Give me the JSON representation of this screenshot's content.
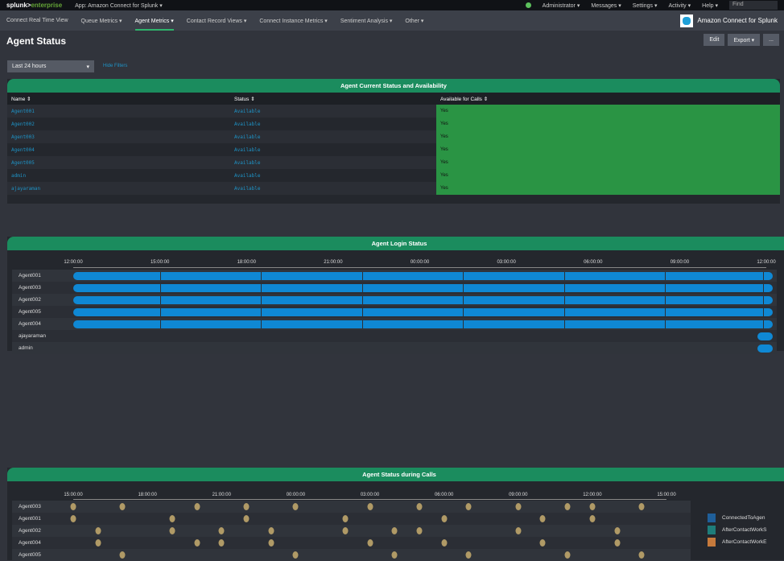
{
  "topbar": {
    "logo_a": "splunk>",
    "logo_b": "enterprise",
    "app": "App: Amazon Connect for Splunk ▾",
    "menus": [
      "Administrator ▾",
      "Messages ▾",
      "Settings ▾",
      "Activity ▾",
      "Help ▾"
    ],
    "find": "Find"
  },
  "nav": {
    "items": [
      "Connect Real Time View",
      "Queue Metrics ▾",
      "Agent Metrics ▾",
      "Contact Record Views ▾",
      "Connect Instance Metrics ▾",
      "Sentiment Analysis ▾",
      "Other ▾"
    ],
    "active": 2,
    "brand": "Amazon Connect for Splunk"
  },
  "page": {
    "title": "Agent Status",
    "edit": "Edit",
    "export": "Export ▾",
    "more": "...",
    "time": "Last 24 hours",
    "hide_filters": "Hide Filters"
  },
  "table": {
    "title": "Agent Current Status and Availability",
    "headers": [
      "Name ⇕",
      "Status ⇕",
      "Available for Calls ⇕"
    ],
    "rows": [
      [
        "Agent001",
        "Available",
        "Yes"
      ],
      [
        "Agent002",
        "Available",
        "Yes"
      ],
      [
        "Agent003",
        "Available",
        "Yes"
      ],
      [
        "Agent004",
        "Available",
        "Yes"
      ],
      [
        "Agent005",
        "Available",
        "Yes"
      ],
      [
        "admin",
        "Available",
        "Yes"
      ],
      [
        "ajayaraman",
        "Available",
        "Yes"
      ]
    ]
  },
  "login": {
    "title": "Agent Login Status",
    "ticks": [
      "12:00:00",
      "15:00:00",
      "18:00:00",
      "21:00:00",
      "00:00:00",
      "03:00:00",
      "06:00:00",
      "09:00:00",
      "12:00:00"
    ],
    "agents": [
      {
        "name": "Agent001",
        "start": 0,
        "end": 24
      },
      {
        "name": "Agent003",
        "start": 0,
        "end": 24
      },
      {
        "name": "Agent002",
        "start": 0,
        "end": 24
      },
      {
        "name": "Agent005",
        "start": 0,
        "end": 24
      },
      {
        "name": "Agent004",
        "start": 0,
        "end": 24
      },
      {
        "name": "ajayaraman",
        "start": 23.7,
        "end": 24
      },
      {
        "name": "admin",
        "start": 23.7,
        "end": 24
      }
    ],
    "color": "#0f88d4"
  },
  "calls": {
    "title": "Agent Status during Calls",
    "ticks": [
      "15:00:00",
      "18:00:00",
      "21:00:00",
      "00:00:00",
      "03:00:00",
      "06:00:00",
      "09:00:00",
      "12:00:00",
      "15:00:00"
    ],
    "note": "event hours offset from first tick",
    "agents": [
      {
        "name": "Agent003",
        "events": [
          0,
          2,
          5,
          7,
          9,
          12,
          14,
          16,
          18,
          20,
          21,
          23
        ]
      },
      {
        "name": "Agent001",
        "events": [
          0,
          4,
          7,
          11,
          15,
          19,
          21
        ]
      },
      {
        "name": "Agent002",
        "events": [
          1,
          4,
          6,
          8,
          11,
          13,
          14,
          18,
          22
        ]
      },
      {
        "name": "Agent004",
        "events": [
          1,
          5,
          6,
          8,
          12,
          15,
          19,
          22
        ]
      },
      {
        "name": "Agent005",
        "events": [
          2,
          9,
          13,
          16,
          20,
          23
        ]
      }
    ],
    "legend": [
      {
        "label": "ConnectedToAgen",
        "color": "#1f5f9a"
      },
      {
        "label": "AfterContactWorkS",
        "color": "#1e7d7a"
      },
      {
        "label": "AfterContactWorkE",
        "color": "#c67a3c"
      }
    ],
    "dot_color": "#b09a66"
  }
}
